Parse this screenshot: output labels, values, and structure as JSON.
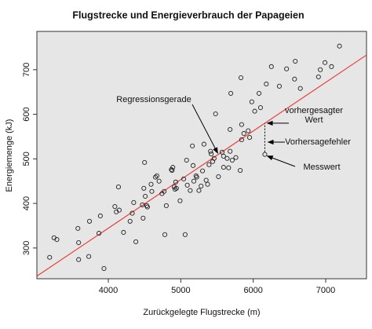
{
  "chart_data": {
    "type": "scatter",
    "title": "Flugstrecke und Energieverbrauch der Papageien",
    "x_label": "Zurückgelegte Flugstrecke (m)",
    "y_label": "Energiemenge (kJ)",
    "xlim": [
      3014,
      7563
    ],
    "ylim": [
      231,
      786
    ],
    "xticks": [
      4000,
      5000,
      6000,
      7000
    ],
    "yticks": [
      300,
      400,
      500,
      600,
      700
    ],
    "point_color": "#222222",
    "x": [
      3190,
      3250,
      3290,
      3580,
      3590,
      3590,
      3730,
      3740,
      3870,
      3890,
      3940,
      4090,
      4110,
      4140,
      4150,
      4210,
      4300,
      4330,
      4350,
      4380,
      4470,
      4480,
      4490,
      4500,
      4510,
      4530,
      4540,
      4590,
      4600,
      4650,
      4670,
      4700,
      4740,
      4770,
      4780,
      4800,
      4870,
      4880,
      4890,
      4910,
      4920,
      4940,
      4930,
      4990,
      5040,
      5060,
      5080,
      5090,
      5130,
      5160,
      5170,
      5180,
      5210,
      5220,
      5250,
      5280,
      5300,
      5320,
      5350,
      5370,
      5390,
      5410,
      5420,
      5440,
      5460,
      5480,
      5520,
      5570,
      5590,
      5590,
      5640,
      5660,
      5680,
      5680,
      5690,
      5710,
      5760,
      5820,
      5830,
      5840,
      5840,
      5870,
      5930,
      5950,
      5980,
      6020,
      6080,
      6100,
      6180,
      6250,
      6360,
      6460,
      6570,
      6580,
      6650,
      6900,
      6925,
      6990,
      7080,
      7190,
      6160
    ],
    "y": [
      279,
      323,
      319,
      344,
      312,
      274,
      281,
      360,
      333,
      372,
      254,
      393,
      381,
      437,
      385,
      335,
      360,
      378,
      402,
      314,
      397,
      367,
      434,
      492,
      416,
      395,
      392,
      443,
      427,
      459,
      462,
      450,
      422,
      427,
      330,
      395,
      476,
      474,
      481,
      437,
      432,
      434,
      448,
      406,
      455,
      330,
      497,
      441,
      429,
      529,
      485,
      450,
      462,
      459,
      429,
      439,
      473,
      533,
      452,
      443,
      487,
      517,
      511,
      494,
      501,
      601,
      460,
      515,
      481,
      506,
      501,
      480,
      566,
      517,
      647,
      497,
      503,
      474,
      682,
      577,
      543,
      557,
      563,
      548,
      628,
      607,
      647,
      615,
      668,
      707,
      663,
      702,
      679,
      719,
      658,
      684,
      700,
      716,
      707,
      753,
      510
    ],
    "fit": {
      "color": "#e8403a",
      "x": [
        3014,
        7563
      ],
      "y": [
        237,
        733
      ]
    },
    "annotations": [
      [
        "Regressionsgerade"
      ],
      [
        "vorhergesagter",
        "Wert"
      ],
      [
        "Vorhersagefehler"
      ],
      [
        "Messwert"
      ]
    ]
  }
}
